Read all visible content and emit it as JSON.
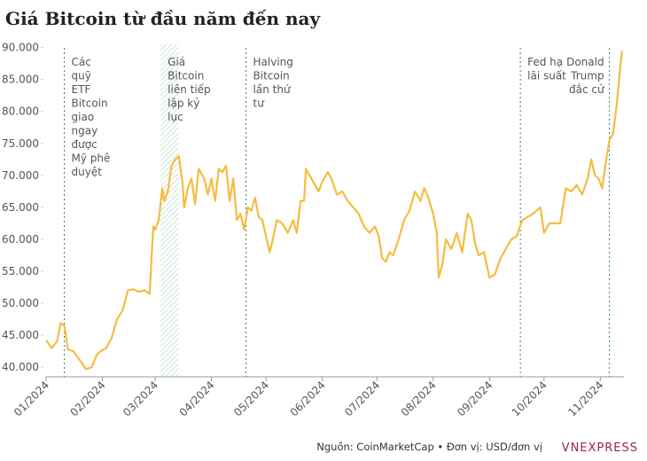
{
  "chart_data": {
    "type": "line",
    "title": "Giá Bitcoin từ đầu năm đến nay",
    "source": "Nguồn: CoinMarketCap • Đơn vị: USD/đơn vị",
    "logo": "VNEXPRESS",
    "color": "#f5bc42",
    "grid": false,
    "xlim": [
      0,
      318
    ],
    "ylim": [
      38500,
      90500
    ],
    "yticks": [
      {
        "value": 40000,
        "label": "40.000"
      },
      {
        "value": 45000,
        "label": "45.000"
      },
      {
        "value": 50000,
        "label": "50.000"
      },
      {
        "value": 55000,
        "label": "55.000"
      },
      {
        "value": 60000,
        "label": "60.000"
      },
      {
        "value": 65000,
        "label": "65.000"
      },
      {
        "value": 70000,
        "label": "70.000"
      },
      {
        "value": 75000,
        "label": "75.000"
      },
      {
        "value": 80000,
        "label": "80.000"
      },
      {
        "value": 85000,
        "label": "85.000"
      },
      {
        "value": 90000,
        "label": "90.000"
      }
    ],
    "xticks": [
      {
        "value": 0,
        "label": "01/2024"
      },
      {
        "value": 31,
        "label": "02/2024"
      },
      {
        "value": 60,
        "label": "03/2024"
      },
      {
        "value": 91,
        "label": "04/2024"
      },
      {
        "value": 121,
        "label": "05/2024"
      },
      {
        "value": 152,
        "label": "06/2024"
      },
      {
        "value": 182,
        "label": "07/2024"
      },
      {
        "value": 213,
        "label": "08/2024"
      },
      {
        "value": 244,
        "label": "09/2024"
      },
      {
        "value": 274,
        "label": "10/2024"
      },
      {
        "value": 305,
        "label": "11/2024"
      }
    ],
    "x": [
      0,
      3,
      6,
      8,
      10,
      12,
      15,
      18,
      22,
      25,
      28,
      30,
      33,
      36,
      39,
      42,
      45,
      48,
      51,
      54,
      57,
      58,
      59,
      60,
      62,
      64,
      65,
      67,
      69,
      71,
      73,
      75,
      76,
      78,
      80,
      82,
      84,
      87,
      89,
      91,
      93,
      95,
      97,
      99,
      101,
      103,
      105,
      107,
      109,
      111,
      113,
      115,
      117,
      119,
      121,
      123,
      124,
      127,
      130,
      133,
      136,
      138,
      140,
      142,
      143,
      145,
      148,
      150,
      152,
      155,
      157,
      160,
      163,
      166,
      169,
      172,
      175,
      178,
      181,
      183,
      185,
      187,
      189,
      191,
      194,
      197,
      200,
      203,
      206,
      208,
      210,
      213,
      215,
      216,
      218,
      220,
      223,
      226,
      229,
      232,
      234,
      236,
      238,
      241,
      244,
      247,
      250,
      253,
      256,
      259,
      262,
      265,
      268,
      272,
      274,
      277,
      280,
      283,
      286,
      289,
      292,
      295,
      298,
      300,
      302,
      304,
      306,
      308,
      310,
      312,
      314,
      316,
      317
    ],
    "values": [
      44200,
      43000,
      44000,
      46900,
      46500,
      42800,
      42500,
      41300,
      39700,
      40000,
      42000,
      42500,
      43000,
      44500,
      47500,
      48800,
      52000,
      52200,
      51800,
      52000,
      51500,
      57000,
      62000,
      61500,
      63000,
      68000,
      66000,
      67500,
      71500,
      72500,
      73000,
      69000,
      65000,
      68000,
      69500,
      65500,
      71000,
      69500,
      67000,
      69500,
      66000,
      71000,
      70500,
      71500,
      66000,
      69500,
      63000,
      64000,
      61500,
      65000,
      64500,
      66500,
      63500,
      63000,
      60500,
      58000,
      59000,
      63000,
      62500,
      61000,
      63000,
      61000,
      66000,
      66000,
      71000,
      70000,
      68500,
      67500,
      69000,
      70500,
      69500,
      67000,
      67500,
      66000,
      65000,
      64000,
      62000,
      61000,
      62000,
      60500,
      57000,
      56500,
      58000,
      57500,
      60000,
      63000,
      64500,
      67500,
      66000,
      68000,
      66800,
      64000,
      61000,
      54000,
      56000,
      60000,
      58500,
      61000,
      58000,
      64000,
      63000,
      59500,
      57500,
      58000,
      54000,
      54500,
      57000,
      58500,
      60000,
      60500,
      63000,
      63500,
      64000,
      65000,
      61000,
      62500,
      62500,
      62500,
      68000,
      67500,
      68500,
      67000,
      69500,
      72500,
      70000,
      69500,
      68000,
      72000,
      75500,
      76500,
      81000,
      87000,
      89500
    ],
    "shade": {
      "x": [
        63,
        73
      ]
    },
    "annotations": [
      {
        "x": 10,
        "anchor": "start",
        "lines": [
          "Các",
          "quỹ",
          "ETF",
          "Bitcoin",
          "giao",
          "ngay",
          "được",
          "Mỹ phê",
          "duyệt"
        ]
      },
      {
        "x": 63,
        "anchor": "start",
        "lines": [
          "Giá",
          "Bitcoin",
          "liên tiếp",
          "lập kỷ",
          "lục"
        ]
      },
      {
        "x": 110,
        "anchor": "start",
        "lines": [
          "Halving",
          "Bitcoin",
          "lần thứ",
          "tư"
        ]
      },
      {
        "x": 261,
        "anchor": "start",
        "lines": [
          "Fed hạ",
          "lãi suất"
        ]
      },
      {
        "x": 310,
        "anchor": "end",
        "lines": [
          "Donald",
          "Trump",
          "đắc cử"
        ]
      }
    ]
  }
}
